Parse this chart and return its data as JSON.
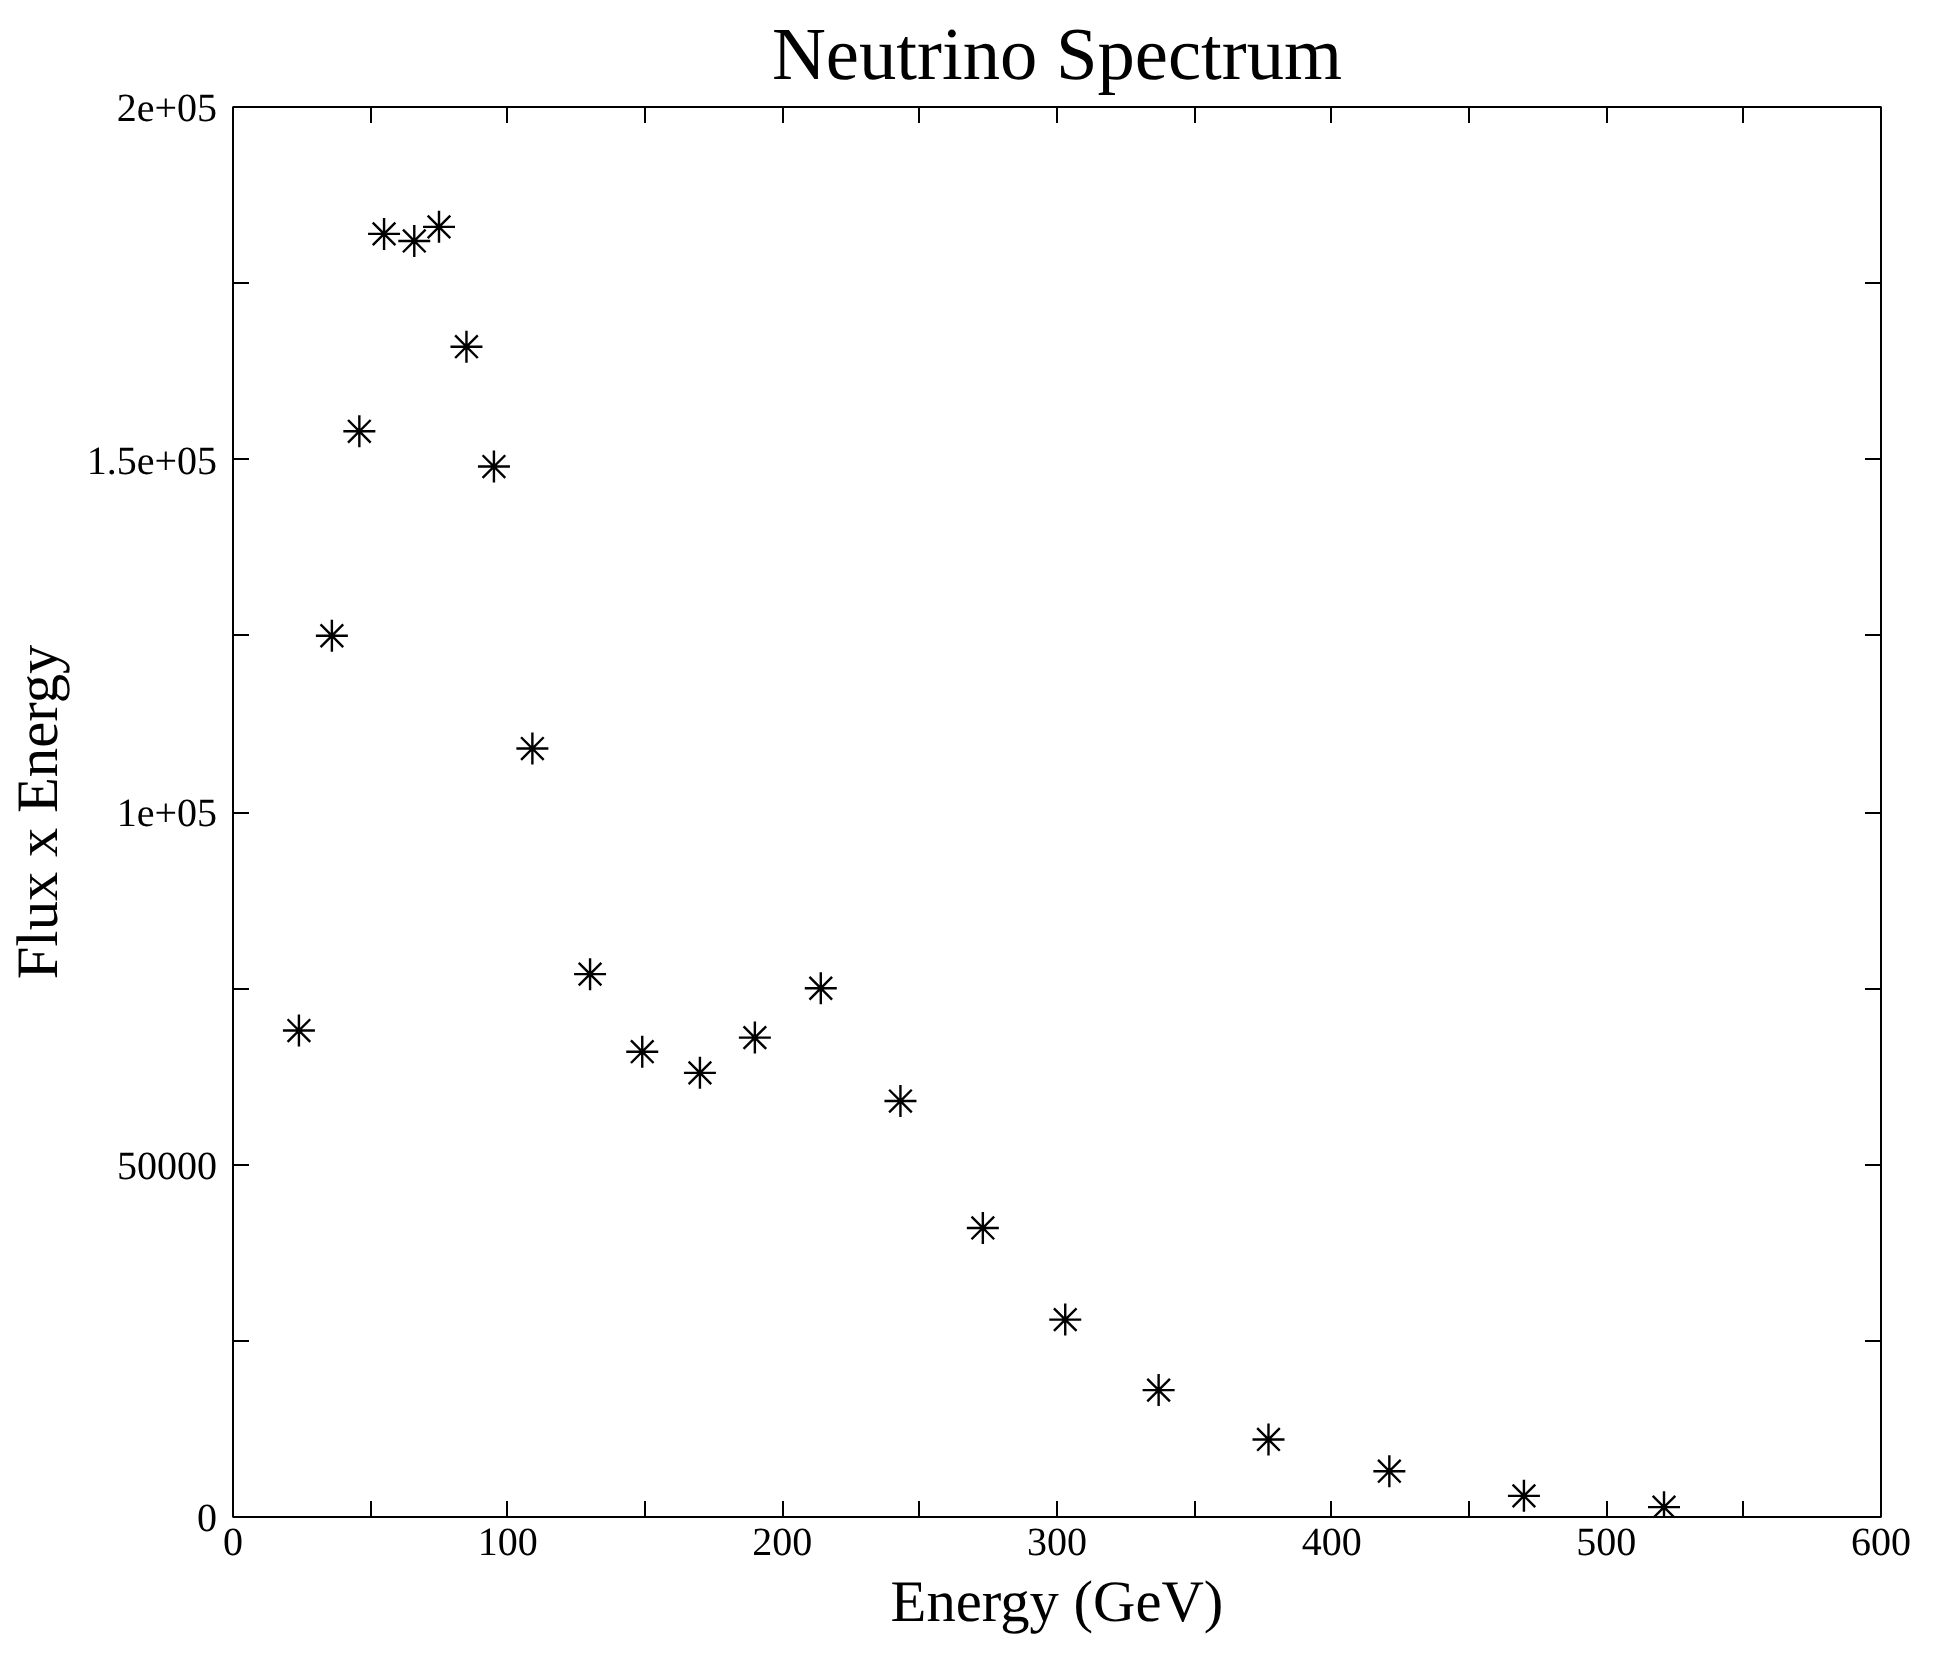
{
  "chart_data": {
    "type": "scatter",
    "title": "Neutrino Spectrum",
    "xlabel": "Energy (GeV)",
    "ylabel": "Flux x Energy",
    "x": [
      24,
      36,
      46,
      55,
      66,
      75,
      85,
      95,
      109,
      130,
      149,
      170,
      190,
      214,
      243,
      273,
      303,
      337,
      377,
      421,
      470,
      521
    ],
    "values": [
      69000,
      125000,
      154000,
      182000,
      181000,
      183000,
      166000,
      149000,
      109000,
      77000,
      66000,
      63000,
      68000,
      75000,
      59000,
      41000,
      28000,
      18000,
      11000,
      6500,
      3000,
      1400
    ],
    "color": "#000000",
    "marker": "cross",
    "xlim": [
      0,
      600
    ],
    "ylim": [
      0,
      200000
    ],
    "xticks": [
      0,
      {
        "value": 50,
        "label": null
      },
      100,
      {
        "value": 150,
        "label": null
      },
      200,
      {
        "value": 250,
        "label": null
      },
      300,
      {
        "value": 350,
        "label": null
      },
      400,
      {
        "value": 450,
        "label": null
      },
      500,
      {
        "value": 550,
        "label": null
      },
      600
    ],
    "yticks": [
      0,
      {
        "value": 25000,
        "label": null
      },
      50000,
      {
        "value": 75000,
        "label": null
      },
      {
        "value": 100000,
        "label": "1e+05"
      },
      {
        "value": 125000,
        "label": null
      },
      {
        "value": 150000,
        "label": "1.5e+05"
      },
      {
        "value": 175000,
        "label": null
      },
      {
        "value": 200000,
        "label": "2e+05"
      }
    ],
    "grid": false
  }
}
